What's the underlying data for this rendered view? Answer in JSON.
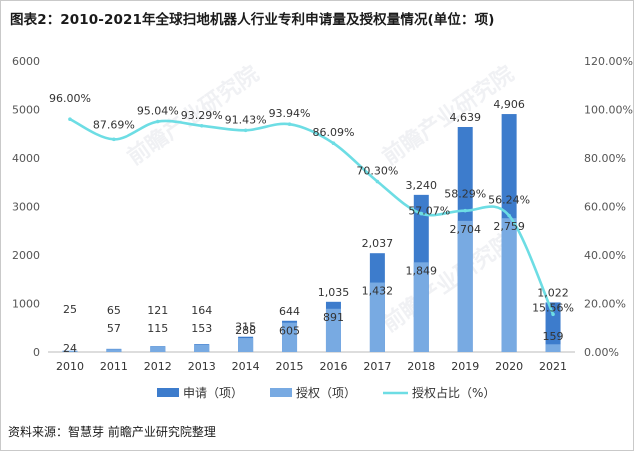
{
  "title": "图表2：2010-2021年全球扫地机器人行业专利申请量及授权量情况(单位：项)",
  "source": "资料来源：智慧芽 前瞻产业研究院整理",
  "watermark": "前瞻产业研究院",
  "colors": {
    "apply": "#3d7ccc",
    "grant": "#78aae2",
    "rate": "#6ddde4",
    "axis_text": "#555555",
    "axis_line": "#bbbbbb"
  },
  "chart_data": {
    "type": "bar",
    "categories": [
      "2010",
      "2011",
      "2012",
      "2013",
      "2014",
      "2015",
      "2016",
      "2017",
      "2018",
      "2019",
      "2020",
      "2021"
    ],
    "series": [
      {
        "name": "申请（项）",
        "type": "bar",
        "axis": "left",
        "values": [
          25,
          65,
          121,
          164,
          315,
          644,
          1035,
          2037,
          3240,
          4639,
          4906,
          1022
        ],
        "labels": [
          "25",
          "65",
          "121",
          "164",
          "315",
          "644",
          "1,035",
          "2,037",
          "3,240",
          "4,639",
          "4,906",
          "1,022"
        ]
      },
      {
        "name": "授权（项）",
        "type": "bar",
        "axis": "left",
        "values": [
          24,
          57,
          115,
          153,
          288,
          605,
          891,
          1432,
          1849,
          2704,
          2759,
          159
        ],
        "labels": [
          "24",
          "57",
          "115",
          "153",
          "288",
          "605",
          "891",
          "1,432",
          "1,849",
          "2,704",
          "2,759",
          "159"
        ]
      },
      {
        "name": "授权占比（%）",
        "type": "line",
        "axis": "right",
        "values": [
          96.0,
          87.69,
          95.04,
          93.29,
          91.43,
          93.94,
          86.09,
          70.3,
          57.07,
          58.29,
          56.24,
          15.56
        ],
        "labels": [
          "96.00%",
          "87.69%",
          "95.04%",
          "93.29%",
          "91.43%",
          "93.94%",
          "86.09%",
          "70.30%",
          "57.07%",
          "58.29%",
          "56.24%",
          "15.56%"
        ]
      }
    ],
    "y_left": {
      "min": 0,
      "max": 6000,
      "ticks": [
        "0",
        "1000",
        "2000",
        "3000",
        "4000",
        "5000",
        "6000"
      ]
    },
    "y_right": {
      "min": 0,
      "max": 120,
      "ticks": [
        "0.00%",
        "20.00%",
        "40.00%",
        "60.00%",
        "80.00%",
        "100.00%",
        "120.00%"
      ]
    },
    "legend": [
      "申请（项）",
      "授权（项）",
      "授权占比（%）"
    ],
    "legend_position": "bottom"
  }
}
